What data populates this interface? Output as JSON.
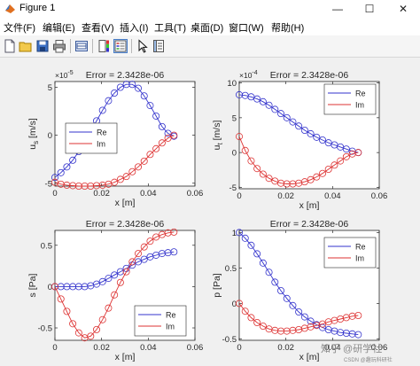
{
  "window": {
    "title": "Figure 1",
    "minimize_glyph": "—",
    "maximize_glyph": "☐",
    "close_glyph": "✕"
  },
  "menu": [
    {
      "label": "文件(F)"
    },
    {
      "label": "编辑(E)"
    },
    {
      "label": "查看(V)"
    },
    {
      "label": "插入(I)"
    },
    {
      "label": "工具(T)"
    },
    {
      "label": "桌面(D)"
    },
    {
      "label": "窗口(W)"
    },
    {
      "label": "帮助(H)"
    }
  ],
  "toolbar": {
    "icons": [
      "new-figure-icon",
      "open-file-icon",
      "save-icon",
      "print-icon",
      "link-plot-icon",
      "colorbar-icon",
      "legend-icon",
      "edit-plot-icon",
      "property-inspector-icon"
    ]
  },
  "colors": {
    "re": "#3333cc",
    "im": "#dd3333",
    "axes_bg": "#ffffff"
  },
  "watermark": "知乎 @研学社",
  "watermark_small": "CSDN @趣玩科研社",
  "chart_data": [
    {
      "type": "line",
      "title": "Error = 2.3428e-06",
      "exponent_label": "×10^-5",
      "exp_base": "×10",
      "exp_power": "-5",
      "xlabel": "x [m]",
      "ylabel": "u",
      "ylabel_sub": "s",
      "ylabel_unit": "[m/s]",
      "xlim": [
        0,
        0.06
      ],
      "ylim": [
        -5.3,
        5.6
      ],
      "xticks": [
        0,
        0.02,
        0.04,
        0.06
      ],
      "xticklabels": [
        "0",
        "0.02",
        "0.04",
        "0.06"
      ],
      "yticks": [
        -5,
        0,
        5
      ],
      "yticklabels": [
        "-5",
        "0",
        "5"
      ],
      "legend_position": "middle-left",
      "x": [
        0,
        0.00255,
        0.0051,
        0.00765,
        0.0102,
        0.01275,
        0.0153,
        0.01785,
        0.0204,
        0.02295,
        0.0255,
        0.02805,
        0.0306,
        0.03315,
        0.0357,
        0.03825,
        0.0408,
        0.04335,
        0.0459,
        0.04845,
        0.051
      ],
      "series": [
        {
          "name": "Re",
          "values": [
            -4.4,
            -3.9,
            -3.3,
            -2.6,
            -1.7,
            -0.7,
            0.4,
            1.5,
            2.6,
            3.6,
            4.4,
            5.0,
            5.3,
            5.3,
            4.9,
            4.1,
            3.1,
            2.0,
            0.9,
            0.2,
            -0.1
          ]
        },
        {
          "name": "Im",
          "values": [
            -4.9,
            -5.1,
            -5.2,
            -5.25,
            -5.3,
            -5.3,
            -5.3,
            -5.25,
            -5.2,
            -5.1,
            -4.9,
            -4.6,
            -4.3,
            -3.8,
            -3.3,
            -2.7,
            -2.0,
            -1.4,
            -0.8,
            -0.3,
            0.0
          ]
        }
      ]
    },
    {
      "type": "line",
      "title": "Error = 2.3428e-06",
      "exponent_label": "×10^-4",
      "exp_base": "×10",
      "exp_power": "-4",
      "xlabel": "x [m]",
      "ylabel": "u",
      "ylabel_sub": "t",
      "ylabel_unit": "[m/s]",
      "xlim": [
        0,
        0.06
      ],
      "ylim": [
        -5.2,
        10.2
      ],
      "xticks": [
        0,
        0.02,
        0.04,
        0.06
      ],
      "xticklabels": [
        "0",
        "0.02",
        "0.04",
        "0.06"
      ],
      "yticks": [
        -5,
        0,
        5,
        10
      ],
      "yticklabels": [
        "-5",
        "0",
        "5",
        "10"
      ],
      "legend_position": "top-right",
      "x": [
        0,
        0.00255,
        0.0051,
        0.00765,
        0.0102,
        0.01275,
        0.0153,
        0.01785,
        0.0204,
        0.02295,
        0.0255,
        0.02805,
        0.0306,
        0.03315,
        0.0357,
        0.03825,
        0.0408,
        0.04335,
        0.0459,
        0.04845,
        0.051
      ],
      "series": [
        {
          "name": "Re",
          "values": [
            8.3,
            8.2,
            8.0,
            7.7,
            7.3,
            6.8,
            6.2,
            5.6,
            5.0,
            4.4,
            3.8,
            3.2,
            2.7,
            2.2,
            1.8,
            1.4,
            1.1,
            0.8,
            0.5,
            0.2,
            0.0
          ]
        },
        {
          "name": "Im",
          "values": [
            2.3,
            0.3,
            -1.2,
            -2.3,
            -3.1,
            -3.7,
            -4.1,
            -4.4,
            -4.5,
            -4.5,
            -4.4,
            -4.2,
            -3.9,
            -3.5,
            -3.0,
            -2.4,
            -1.8,
            -1.2,
            -0.6,
            -0.2,
            0.0
          ]
        }
      ]
    },
    {
      "type": "line",
      "title": "Error = 2.3428e-06",
      "xlabel": "x [m]",
      "ylabel": "s [Pa]",
      "xlim": [
        0,
        0.06
      ],
      "ylim": [
        -0.65,
        0.68
      ],
      "xticks": [
        0,
        0.02,
        0.04,
        0.06
      ],
      "xticklabels": [
        "0",
        "0.02",
        "0.04",
        "0.06"
      ],
      "yticks": [
        -0.5,
        0,
        0.5
      ],
      "yticklabels": [
        "-0.5",
        "0",
        "0.5"
      ],
      "legend_position": "bottom-right",
      "x": [
        0,
        0.00255,
        0.0051,
        0.00765,
        0.0102,
        0.01275,
        0.0153,
        0.01785,
        0.0204,
        0.02295,
        0.0255,
        0.02805,
        0.0306,
        0.03315,
        0.0357,
        0.03825,
        0.0408,
        0.04335,
        0.0459,
        0.04845,
        0.051
      ],
      "series": [
        {
          "name": "Re",
          "values": [
            0.0,
            0.0,
            0.0,
            0.0,
            0.0,
            0.0,
            0.01,
            0.03,
            0.06,
            0.1,
            0.14,
            0.18,
            0.22,
            0.26,
            0.3,
            0.33,
            0.36,
            0.38,
            0.4,
            0.41,
            0.42
          ]
        },
        {
          "name": "Im",
          "values": [
            0.0,
            -0.15,
            -0.3,
            -0.45,
            -0.56,
            -0.62,
            -0.6,
            -0.52,
            -0.4,
            -0.26,
            -0.1,
            0.05,
            0.18,
            0.3,
            0.4,
            0.48,
            0.55,
            0.6,
            0.63,
            0.65,
            0.66
          ]
        }
      ]
    },
    {
      "type": "line",
      "title": "Error = 2.3428e-06",
      "xlabel": "x [m]",
      "ylabel": "p [Pa]",
      "xlim": [
        0,
        0.06
      ],
      "ylim": [
        -0.52,
        1.03
      ],
      "xticks": [
        0,
        0.02,
        0.04,
        0.06
      ],
      "xticklabels": [
        "0",
        "0.02",
        "0.04",
        "0.06"
      ],
      "yticks": [
        -0.5,
        0,
        0.5,
        1
      ],
      "yticklabels": [
        "-0.5",
        "0",
        "0.5",
        "1"
      ],
      "legend_position": "top-right",
      "x": [
        0,
        0.00255,
        0.0051,
        0.00765,
        0.0102,
        0.01275,
        0.0153,
        0.01785,
        0.0204,
        0.02295,
        0.0255,
        0.02805,
        0.0306,
        0.03315,
        0.0357,
        0.03825,
        0.0408,
        0.04335,
        0.0459,
        0.04845,
        0.051
      ],
      "series": [
        {
          "name": "Re",
          "values": [
            1.0,
            0.92,
            0.82,
            0.7,
            0.57,
            0.44,
            0.3,
            0.18,
            0.07,
            -0.03,
            -0.12,
            -0.19,
            -0.25,
            -0.3,
            -0.34,
            -0.37,
            -0.39,
            -0.41,
            -0.42,
            -0.43,
            -0.44
          ]
        },
        {
          "name": "Im",
          "values": [
            0.0,
            -0.11,
            -0.2,
            -0.27,
            -0.32,
            -0.36,
            -0.38,
            -0.39,
            -0.39,
            -0.38,
            -0.37,
            -0.35,
            -0.33,
            -0.31,
            -0.29,
            -0.26,
            -0.24,
            -0.22,
            -0.2,
            -0.18,
            -0.17
          ]
        }
      ]
    }
  ]
}
